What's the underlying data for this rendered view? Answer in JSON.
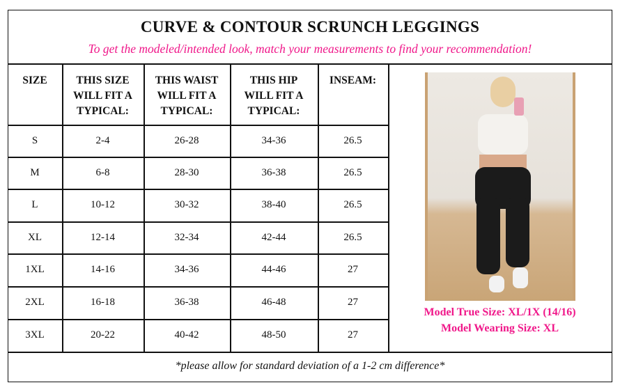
{
  "title": "CURVE & CONTOUR SCRUNCH LEGGINGS",
  "subtitle": "To get the modeled/intended look, match your measurements to find your recommendation!",
  "accent_color": "#f0188a",
  "headers": [
    "SIZE",
    "THIS SIZE WILL FIT A TYPICAL:",
    "THIS WAIST WILL FIT A TYPICAL:",
    "THIS HIP WILL FIT A TYPICAL:",
    "INSEAM:"
  ],
  "rows": [
    [
      "S",
      "2-4",
      "26-28",
      "34-36",
      "26.5"
    ],
    [
      "M",
      "6-8",
      "28-30",
      "36-38",
      "26.5"
    ],
    [
      "L",
      "10-12",
      "30-32",
      "38-40",
      "26.5"
    ],
    [
      "XL",
      "12-14",
      "32-34",
      "42-44",
      "26.5"
    ],
    [
      "1XL",
      "14-16",
      "34-36",
      "44-46",
      "27"
    ],
    [
      "2XL",
      "16-18",
      "36-38",
      "46-48",
      "27"
    ],
    [
      "3XL",
      "20-22",
      "40-42",
      "48-50",
      "27"
    ]
  ],
  "model": {
    "true_size": "Model True Size: XL/1X (14/16)",
    "wearing_size": "Model Wearing Size: XL"
  },
  "footer": "*please allow for standard deviation of a 1-2 cm difference*"
}
